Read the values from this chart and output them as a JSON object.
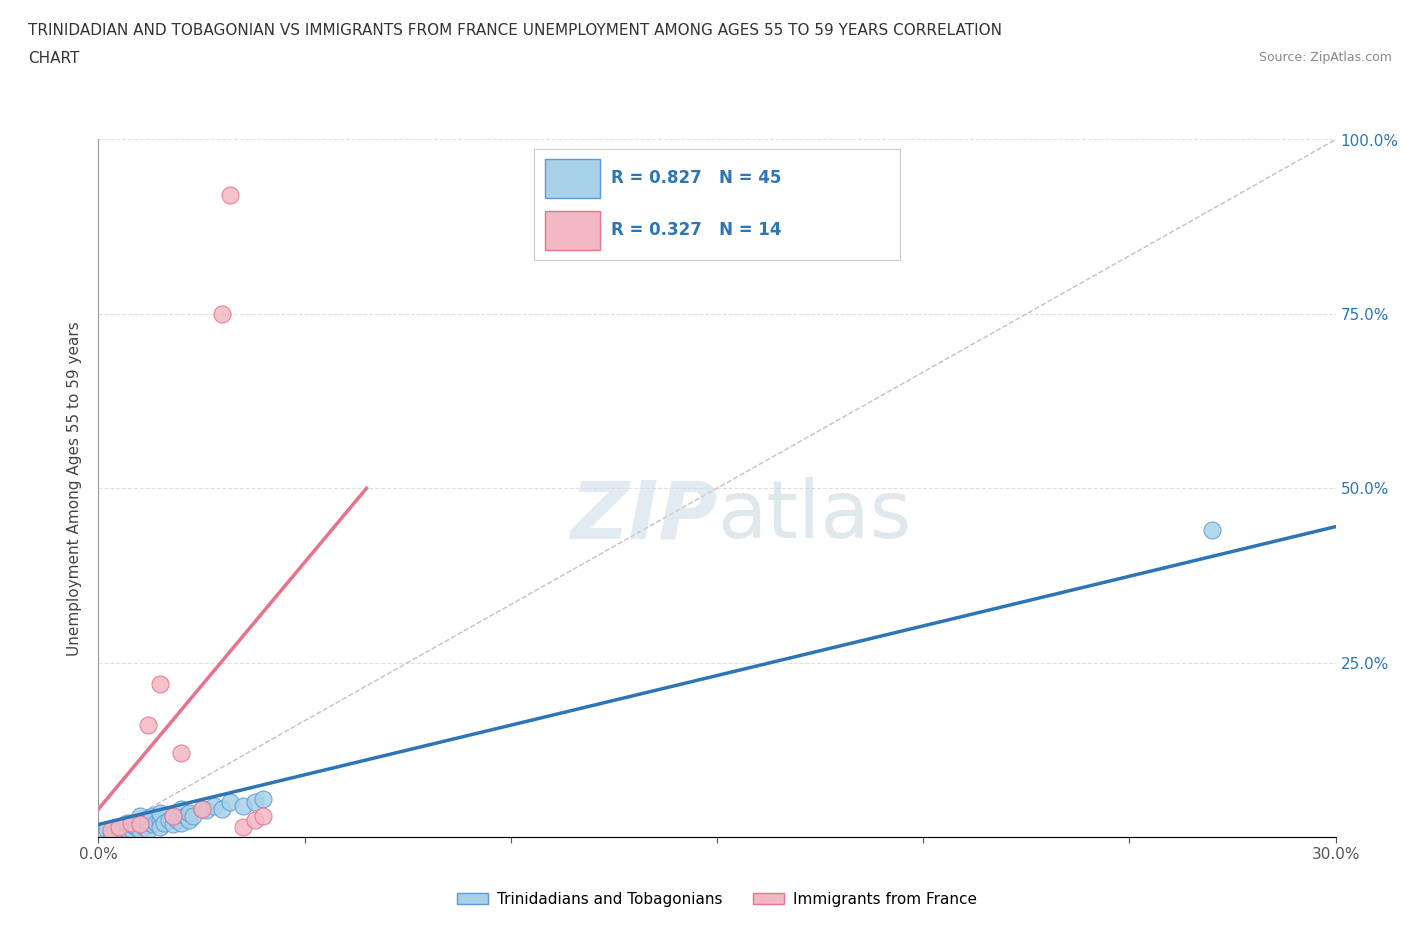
{
  "title_line1": "TRINIDADIAN AND TOBAGONIAN VS IMMIGRANTS FROM FRANCE UNEMPLOYMENT AMONG AGES 55 TO 59 YEARS CORRELATION",
  "title_line2": "CHART",
  "source_text": "Source: ZipAtlas.com",
  "ylabel": "Unemployment Among Ages 55 to 59 years",
  "xlim": [
    0.0,
    0.3
  ],
  "ylim": [
    0.0,
    1.0
  ],
  "xticks": [
    0.0,
    0.05,
    0.1,
    0.15,
    0.2,
    0.25,
    0.3
  ],
  "yticks": [
    0.0,
    0.25,
    0.5,
    0.75,
    1.0
  ],
  "xtick_labels_left": [
    "0.0%",
    "",
    "",
    "",
    "",
    "",
    ""
  ],
  "xtick_labels_right": [
    "",
    "",
    "",
    "",
    "",
    "",
    "30.0%"
  ],
  "ytick_labels_right": [
    "",
    "25.0%",
    "50.0%",
    "75.0%",
    "100.0%"
  ],
  "blue_scatter_color": "#a8d0e8",
  "blue_edge_color": "#5b9bd5",
  "pink_scatter_color": "#f4b8c4",
  "pink_edge_color": "#e8728a",
  "blue_line_color": "#2e75b6",
  "pink_line_color": "#e05a78",
  "diag_line_color": "#d0b8c8",
  "grid_color": "#e0e0e0",
  "R_blue": 0.827,
  "N_blue": 45,
  "R_pink": 0.327,
  "N_pink": 14,
  "legend_label_blue": "Trinidadians and Tobagonians",
  "legend_label_pink": "Immigrants from France",
  "watermark": "ZIPatlas",
  "background_color": "#ffffff",
  "blue_scatter_x": [
    0.002,
    0.003,
    0.004,
    0.005,
    0.005,
    0.006,
    0.006,
    0.007,
    0.007,
    0.008,
    0.008,
    0.009,
    0.01,
    0.01,
    0.01,
    0.011,
    0.011,
    0.012,
    0.012,
    0.013,
    0.013,
    0.014,
    0.015,
    0.015,
    0.015,
    0.016,
    0.017,
    0.018,
    0.018,
    0.019,
    0.02,
    0.02,
    0.021,
    0.022,
    0.022,
    0.023,
    0.025,
    0.026,
    0.028,
    0.03,
    0.032,
    0.035,
    0.038,
    0.04,
    0.27
  ],
  "blue_scatter_y": [
    0.01,
    0.005,
    0.008,
    0.01,
    0.012,
    0.008,
    0.015,
    0.01,
    0.02,
    0.012,
    0.018,
    0.015,
    0.01,
    0.02,
    0.03,
    0.015,
    0.025,
    0.01,
    0.022,
    0.018,
    0.03,
    0.02,
    0.025,
    0.015,
    0.035,
    0.02,
    0.025,
    0.018,
    0.03,
    0.025,
    0.02,
    0.04,
    0.03,
    0.025,
    0.035,
    0.03,
    0.04,
    0.038,
    0.045,
    0.04,
    0.05,
    0.045,
    0.05,
    0.055,
    0.44
  ],
  "pink_scatter_x": [
    0.003,
    0.005,
    0.008,
    0.01,
    0.012,
    0.015,
    0.018,
    0.02,
    0.025,
    0.03,
    0.032,
    0.035,
    0.038,
    0.04
  ],
  "pink_scatter_y": [
    0.01,
    0.015,
    0.02,
    0.018,
    0.16,
    0.22,
    0.03,
    0.12,
    0.04,
    0.75,
    0.92,
    0.015,
    0.025,
    0.03
  ],
  "blue_line_x0": 0.0,
  "blue_line_y0": 0.018,
  "blue_line_x1": 0.3,
  "blue_line_y1": 0.445,
  "pink_line_x0": 0.0,
  "pink_line_y0": 0.04,
  "pink_line_x1": 0.065,
  "pink_line_y1": 0.5
}
